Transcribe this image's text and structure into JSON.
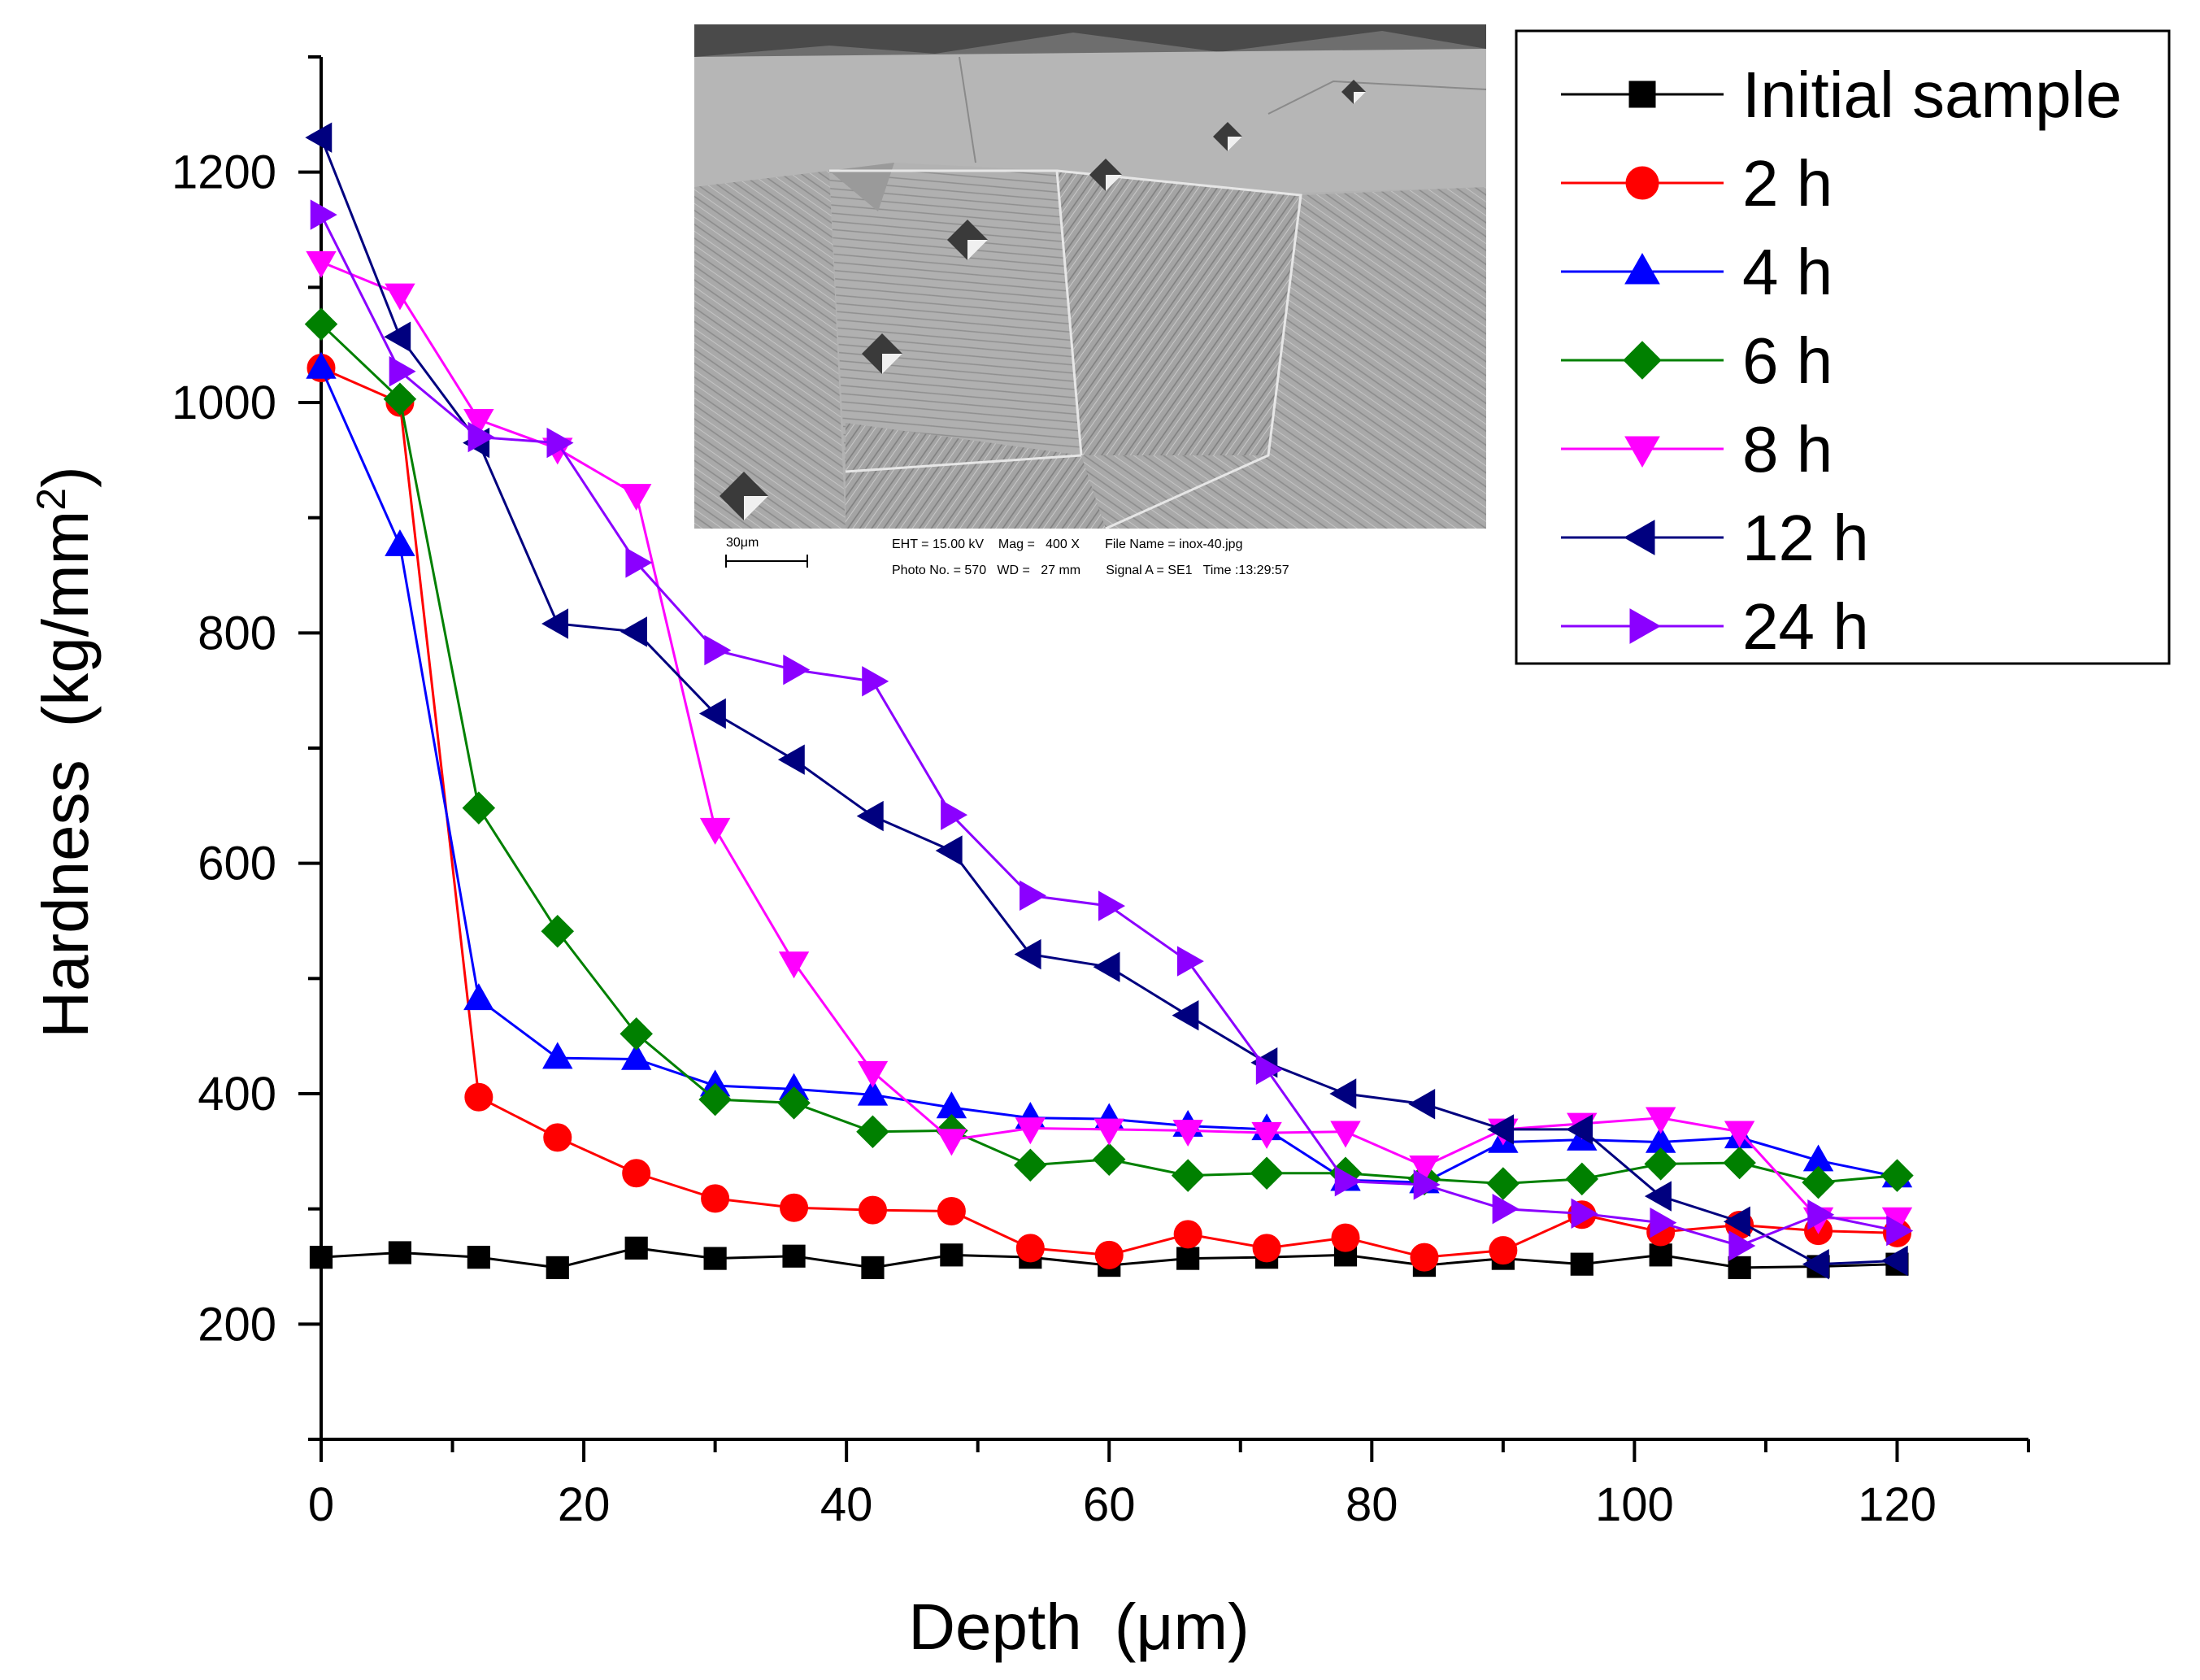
{
  "chart_data": {
    "type": "line",
    "title": "",
    "xlabel": "Depth",
    "xlabel_unit": "(μm)",
    "ylabel": "Hardness",
    "ylabel_unit_prefix": "(kg/mm",
    "ylabel_unit_sup": "2",
    "ylabel_unit_suffix": ")",
    "xlim": [
      0,
      130
    ],
    "ylim": [
      100,
      1300
    ],
    "x_ticks": [
      0,
      20,
      40,
      60,
      80,
      100,
      120
    ],
    "x_tick_labels": [
      "0",
      "20",
      "40",
      "60",
      "80",
      "100",
      "120"
    ],
    "y_ticks": [
      200,
      400,
      600,
      800,
      1000,
      1200
    ],
    "y_tick_labels": [
      "200",
      "400",
      "600",
      "800",
      "1000",
      "1200"
    ],
    "x": [
      0,
      6,
      12,
      18,
      24,
      30,
      36,
      42,
      48,
      54,
      60,
      66,
      72,
      78,
      84,
      90,
      96,
      102,
      108,
      114,
      120
    ],
    "legend_position": "top-right",
    "series": [
      {
        "name": "Initial sample",
        "color": "#000000",
        "marker": "square",
        "values": [
          258,
          262,
          258,
          249,
          266,
          257,
          259,
          249,
          260,
          258,
          251,
          257,
          258,
          260,
          251,
          257,
          252,
          260,
          249,
          250,
          252
        ]
      },
      {
        "name": "2 h",
        "color": "#ff0000",
        "marker": "circle",
        "values": [
          1030,
          1000,
          397,
          362,
          331,
          309,
          301,
          299,
          298,
          266,
          260,
          278,
          266,
          275,
          258,
          264,
          295,
          280,
          286,
          281,
          279
        ]
      },
      {
        "name": "4 h",
        "color": "#0000ff",
        "marker": "triangle-up",
        "values": [
          1030,
          876,
          482,
          431,
          430,
          407,
          404,
          399,
          388,
          379,
          378,
          372,
          369,
          325,
          323,
          358,
          360,
          358,
          362,
          342,
          328
        ]
      },
      {
        "name": "6 h",
        "color": "#008000",
        "marker": "diamond",
        "values": [
          1068,
          1003,
          648,
          541,
          452,
          395,
          392,
          367,
          368,
          338,
          343,
          329,
          331,
          331,
          326,
          322,
          326,
          339,
          340,
          323,
          329
        ]
      },
      {
        "name": "8 h",
        "color": "#ff00ff",
        "marker": "triangle-down",
        "values": [
          1122,
          1094,
          985,
          960,
          920,
          630,
          514,
          419,
          360,
          370,
          369,
          368,
          366,
          367,
          337,
          369,
          374,
          379,
          367,
          292,
          292
        ]
      },
      {
        "name": "12 h",
        "color": "#00007f",
        "marker": "triangle-left",
        "values": [
          1230,
          1057,
          965,
          808,
          801,
          730,
          690,
          641,
          611,
          521,
          510,
          468,
          427,
          400,
          391,
          369,
          369,
          311,
          289,
          252,
          255
        ]
      },
      {
        "name": "24 h",
        "color": "#8b00ff",
        "marker": "triangle-right",
        "values": [
          1163,
          1027,
          970,
          965,
          861,
          785,
          768,
          758,
          642,
          572,
          563,
          515,
          421,
          324,
          321,
          300,
          296,
          288,
          268,
          295,
          281
        ]
      }
    ],
    "inset": {
      "description_label": "SEM micrograph",
      "scale_bar": "30μm",
      "info_row1": "EHT = 15.00 kV    Mag =   400 X       File Name = inox-40.jpg",
      "info_row2": "Photo No. = 570   WD =   27 mm       Signal A = SE1   Time :13:29:57"
    }
  }
}
